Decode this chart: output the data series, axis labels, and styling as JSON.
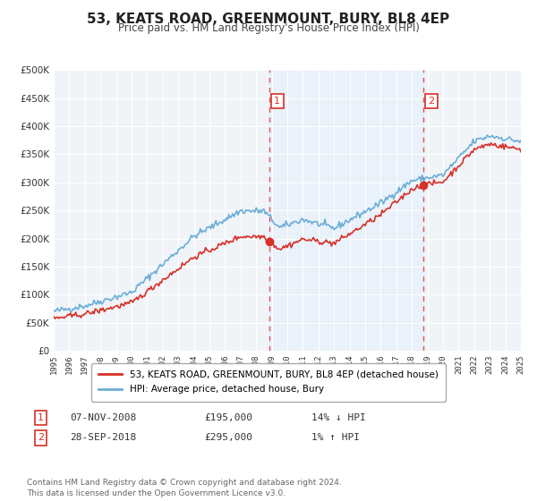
{
  "title": "53, KEATS ROAD, GREENMOUNT, BURY, BL8 4EP",
  "subtitle": "Price paid vs. HM Land Registry's House Price Index (HPI)",
  "background_color": "#ffffff",
  "plot_bg_color": "#f0f4f8",
  "grid_color": "#ffffff",
  "hpi_color": "#6baed6",
  "price_color": "#d73027",
  "shaded_region_color": "#ddeeff",
  "event1_date_num": 2008.85,
  "event1_price": 195000,
  "event2_date_num": 2018.74,
  "event2_price": 295000,
  "legend_label1": "53, KEATS ROAD, GREENMOUNT, BURY, BL8 4EP (detached house)",
  "legend_label2": "HPI: Average price, detached house, Bury",
  "table_row1": [
    "1",
    "07-NOV-2008",
    "£195,000",
    "14% ↓ HPI"
  ],
  "table_row2": [
    "2",
    "28-SEP-2018",
    "£295,000",
    "1% ↑ HPI"
  ],
  "footer": "Contains HM Land Registry data © Crown copyright and database right 2024.\nThis data is licensed under the Open Government Licence v3.0.",
  "xmin": 1995,
  "xmax": 2025,
  "ymin": 0,
  "ymax": 500000,
  "yticks": [
    0,
    50000,
    100000,
    150000,
    200000,
    250000,
    300000,
    350000,
    400000,
    450000,
    500000
  ],
  "ytick_labels": [
    "£0",
    "£50K",
    "£100K",
    "£150K",
    "£200K",
    "£250K",
    "£300K",
    "£350K",
    "£400K",
    "£450K",
    "£500K"
  ]
}
